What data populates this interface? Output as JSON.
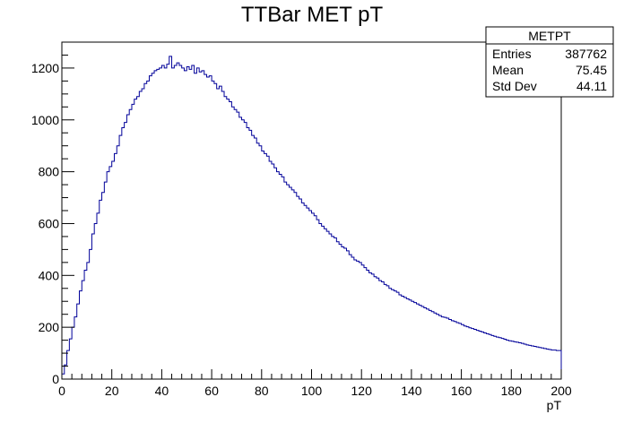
{
  "chart_data": {
    "type": "histogram",
    "title": "TTBar MET pT",
    "xlabel": "pT",
    "ylabel": "",
    "xlim": [
      0,
      200
    ],
    "ylim": [
      0,
      1300
    ],
    "bin_width": 1,
    "x_ticks": [
      "0",
      "20",
      "40",
      "60",
      "80",
      "100",
      "120",
      "140",
      "160",
      "180",
      "200"
    ],
    "y_ticks": [
      "0",
      "200",
      "400",
      "600",
      "800",
      "1000",
      "1200"
    ],
    "line_color": "#000099",
    "grid": false,
    "legend": "none",
    "stats_box": {
      "title": "METPT",
      "position": "top-right",
      "rows": [
        {
          "label": "Entries",
          "value": "387762"
        },
        {
          "label": "Mean",
          "value": "75.45"
        },
        {
          "label": "Std Dev",
          "value": "44.11"
        }
      ]
    },
    "values": [
      20,
      55,
      110,
      155,
      200,
      240,
      290,
      340,
      380,
      420,
      450,
      500,
      560,
      600,
      640,
      690,
      720,
      760,
      800,
      820,
      840,
      870,
      900,
      940,
      970,
      990,
      1020,
      1040,
      1060,
      1080,
      1090,
      1110,
      1120,
      1140,
      1150,
      1170,
      1180,
      1190,
      1195,
      1200,
      1210,
      1200,
      1215,
      1245,
      1200,
      1210,
      1220,
      1210,
      1200,
      1190,
      1205,
      1195,
      1210,
      1180,
      1200,
      1185,
      1190,
      1175,
      1165,
      1170,
      1150,
      1140,
      1120,
      1130,
      1110,
      1090,
      1080,
      1070,
      1050,
      1040,
      1030,
      1010,
      1000,
      990,
      970,
      960,
      940,
      930,
      910,
      900,
      880,
      870,
      860,
      840,
      830,
      815,
      800,
      790,
      780,
      760,
      750,
      740,
      730,
      720,
      705,
      695,
      680,
      670,
      660,
      650,
      640,
      630,
      615,
      600,
      590,
      580,
      570,
      560,
      550,
      545,
      530,
      520,
      510,
      505,
      495,
      480,
      470,
      460,
      455,
      450,
      440,
      430,
      420,
      410,
      405,
      395,
      390,
      380,
      375,
      365,
      360,
      350,
      345,
      340,
      335,
      325,
      320,
      315,
      310,
      305,
      300,
      295,
      290,
      285,
      280,
      275,
      270,
      265,
      260,
      255,
      250,
      245,
      240,
      238,
      235,
      230,
      225,
      222,
      218,
      215,
      210,
      205,
      202,
      198,
      195,
      192,
      188,
      185,
      182,
      178,
      175,
      172,
      168,
      165,
      162,
      160,
      157,
      154,
      150,
      148,
      146,
      144,
      142,
      140,
      138,
      135,
      132,
      130,
      128,
      126,
      124,
      122,
      120,
      118,
      116,
      114,
      112,
      112,
      110,
      110
    ]
  }
}
